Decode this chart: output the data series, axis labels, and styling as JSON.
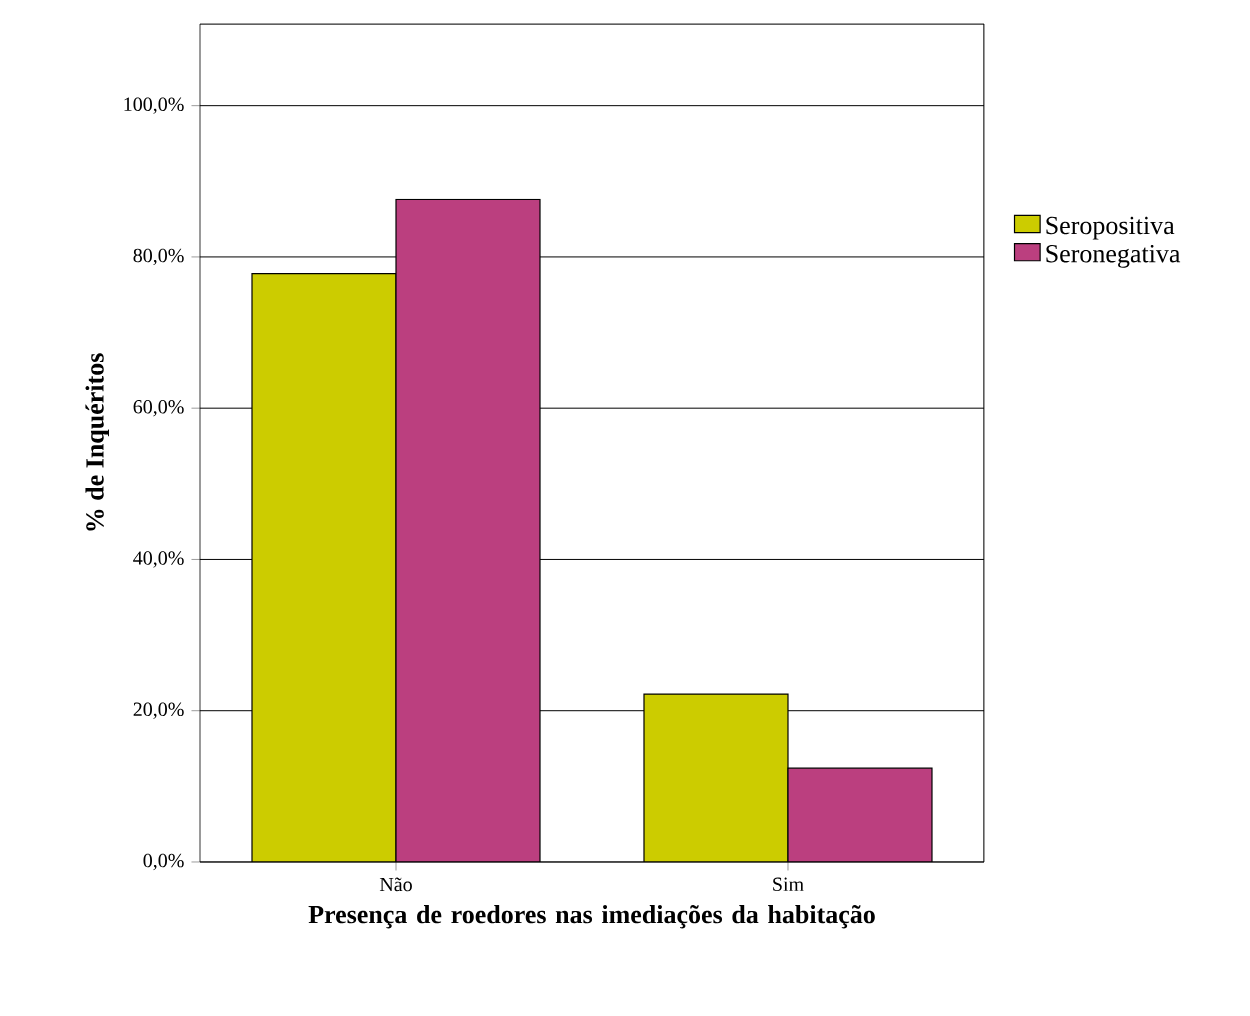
{
  "chart_data": {
    "type": "bar",
    "xlabel": "Presença de roedores nas imediações da habitação",
    "ylabel": "% de Inquéritos",
    "categories": [
      "Não",
      "Sim"
    ],
    "series": [
      {
        "name": "Seropositiva",
        "color": "#cccc00",
        "values": [
          77.8,
          22.2
        ]
      },
      {
        "name": "Seronegativa",
        "color": "#bb3f7f",
        "values": [
          87.6,
          12.4
        ]
      }
    ],
    "ylim": [
      0,
      110.8
    ],
    "yticks": [
      {
        "value": 0,
        "label": "0,0%"
      },
      {
        "value": 20,
        "label": "20,0%"
      },
      {
        "value": 40,
        "label": "40,0%"
      },
      {
        "value": 60,
        "label": "60,0%"
      },
      {
        "value": 80,
        "label": "80,0%"
      },
      {
        "value": 100,
        "label": "100,0%"
      }
    ],
    "grid": "y",
    "legend": "right"
  }
}
